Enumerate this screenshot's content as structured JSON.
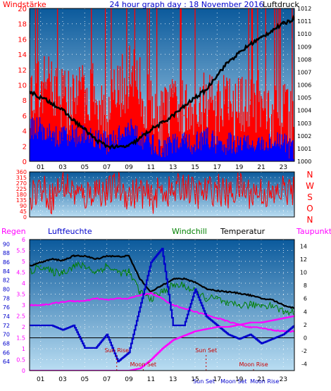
{
  "title": "24 hour graph day : 18 November 2016",
  "colors": {
    "wind": "#ff0000",
    "gust": "#0000ff",
    "pressure": "#000000",
    "rain": "#0000ff",
    "humidity": "#0000cc",
    "windchill": "#008000",
    "temperature": "#000000",
    "dewpoint": "#ff00ff"
  },
  "chart_data": [
    {
      "type": "line",
      "title": "24 hour graph day : 18 November 2016",
      "left_label": "Windstärke",
      "right_label": "Luftdruck",
      "x_ticks": [
        "01",
        "03",
        "05",
        "07",
        "09",
        "11",
        "13",
        "15",
        "17",
        "19",
        "21",
        "23"
      ],
      "y_left": {
        "range": [
          0,
          20
        ],
        "ticks": [
          "0",
          "2",
          "4",
          "6",
          "8",
          "10",
          "12",
          "14",
          "16",
          "18",
          "20"
        ]
      },
      "y_right": {
        "range": [
          1000,
          1012
        ],
        "ticks": [
          "1000",
          "1001",
          "1002",
          "1003",
          "1004",
          "1005",
          "1006",
          "1007",
          "1008",
          "1009",
          "1010",
          "1011",
          "1012"
        ]
      },
      "series": [
        {
          "name": "",
          "x": [
            0,
            1,
            2,
            3,
            4,
            5,
            6,
            7,
            8,
            9,
            10,
            11,
            12,
            13,
            14,
            15,
            16,
            17,
            18,
            19,
            20,
            21,
            22,
            23,
            24
          ],
          "values": [
            8,
            9,
            10,
            8,
            7,
            9,
            8,
            6,
            8,
            11,
            9,
            6,
            5,
            6,
            6,
            7,
            8,
            6,
            7,
            6,
            8,
            7,
            6,
            6,
            4
          ]
        },
        {
          "name": "",
          "x": [
            0,
            1,
            2,
            3,
            4,
            5,
            6,
            7,
            8,
            9,
            10,
            11,
            12,
            13,
            14,
            15,
            16,
            17,
            18,
            19,
            20,
            21,
            22,
            23,
            24
          ],
          "values": [
            4,
            4,
            3,
            3,
            3,
            3,
            3,
            2,
            3,
            4,
            3,
            2,
            1,
            2,
            2,
            2,
            3,
            2,
            2,
            2,
            2,
            2,
            2,
            2,
            1
          ]
        },
        {
          "name": "",
          "x": [
            0,
            1,
            2,
            3,
            4,
            5,
            6,
            7,
            8,
            9,
            10,
            11,
            12,
            13,
            14,
            15,
            16,
            17,
            18,
            19,
            20,
            21,
            22,
            23,
            24
          ],
          "values": [
            1005.5,
            1005.0,
            1004.6,
            1004.0,
            1003.2,
            1002.5,
            1001.7,
            1001.2,
            1001.1,
            1001.2,
            1001.8,
            1002.5,
            1003.0,
            1003.6,
            1004.3,
            1005.0,
            1005.6,
            1006.8,
            1007.8,
            1008.5,
            1009.2,
            1009.7,
            1010.3,
            1010.8,
            1011.2
          ]
        }
      ]
    },
    {
      "type": "scatter",
      "x_ticks": [
        "01",
        "03",
        "05",
        "07",
        "09",
        "11",
        "13",
        "15",
        "17",
        "19",
        "21",
        "23"
      ],
      "y_left": {
        "range": [
          0,
          360
        ],
        "ticks": [
          "0",
          "45",
          "90",
          "135",
          "180",
          "225",
          "270",
          "315",
          "360"
        ]
      },
      "compass_labels": [
        "N",
        "W",
        "S",
        "O",
        "N"
      ],
      "series": [
        {
          "name": "",
          "x": [
            0,
            1,
            2,
            3,
            4,
            5,
            6,
            7,
            8,
            9,
            10,
            11,
            12,
            13,
            14,
            15,
            16,
            17,
            18,
            19,
            20,
            21,
            22,
            23,
            24
          ],
          "values": [
            180,
            240,
            150,
            270,
            200,
            160,
            230,
            190,
            250,
            170,
            210,
            140,
            220,
            190,
            260,
            180,
            200,
            230,
            170,
            240,
            190,
            210,
            160,
            220,
            200
          ]
        }
      ]
    },
    {
      "type": "line",
      "labels": [
        "Regen",
        "Luftfeuchte",
        "Windchill",
        "Temperatur",
        "Taupunkt"
      ],
      "x_ticks": [
        "01",
        "03",
        "05",
        "07",
        "09",
        "11",
        "13",
        "15",
        "17",
        "19",
        "21",
        "23"
      ],
      "rain_axis": {
        "range": [
          0,
          6
        ],
        "ticks": [
          "0",
          "0.5",
          "1",
          "1.5",
          "2",
          "2.5",
          "3",
          "3.5",
          "4",
          "4.5",
          "5",
          "5.5",
          "6"
        ]
      },
      "humidity_axis": {
        "range": [
          62,
          91
        ],
        "ticks": [
          "64",
          "66",
          "68",
          "70",
          "72",
          "74",
          "76",
          "78",
          "80",
          "82",
          "84",
          "86",
          "88",
          "90"
        ]
      },
      "temp_axis": {
        "range": [
          -5,
          15
        ],
        "ticks": [
          "-4",
          "-2",
          "0",
          "2",
          "4",
          "6",
          "8",
          "10",
          "12",
          "14"
        ]
      },
      "annotations": [
        "Sun Rise",
        "Moon Set",
        "Sun Set",
        "Moon Rise",
        "Sun Set",
        "Moon Set",
        "Moon Rise"
      ],
      "series": [
        {
          "name": "",
          "axis": "humidity",
          "x": [
            0,
            1,
            2,
            3,
            4,
            5,
            6,
            7,
            8,
            9,
            10,
            11,
            12,
            13,
            14,
            15,
            16,
            17,
            18,
            19,
            20,
            21,
            22,
            23,
            24
          ],
          "values": [
            72,
            72,
            72,
            71,
            72,
            67,
            67,
            70,
            64,
            66,
            76,
            86,
            89,
            72,
            72,
            80,
            74,
            72,
            70,
            69,
            70,
            68,
            69,
            70,
            72
          ]
        },
        {
          "name": "",
          "axis": "rain",
          "x": [
            0,
            1,
            2,
            3,
            4,
            5,
            6,
            7,
            8,
            9,
            10,
            11,
            12,
            13,
            14,
            15,
            16,
            17,
            18,
            19,
            20,
            21,
            22,
            23,
            24
          ],
          "values": [
            0,
            0,
            0,
            0,
            0,
            0,
            0,
            0,
            0,
            0,
            0.1,
            0.5,
            1,
            1.4,
            1.6,
            1.8,
            1.9,
            2,
            2,
            2.1,
            2.2,
            2.2,
            2.3,
            2.4,
            2.5
          ]
        },
        {
          "name": "Windchill",
          "axis": "temp",
          "x": [
            0,
            1,
            2,
            3,
            4,
            5,
            6,
            7,
            8,
            9,
            10,
            11,
            12,
            13,
            14,
            15,
            16,
            17,
            18,
            19,
            20,
            21,
            22,
            23,
            24
          ],
          "values": [
            10,
            11,
            10,
            10,
            11,
            11,
            10,
            11,
            10,
            10,
            7,
            6,
            7,
            8,
            8,
            7,
            6,
            6,
            5,
            5,
            5,
            5,
            5,
            4,
            4
          ]
        },
        {
          "name": "Temperatur",
          "axis": "temp",
          "x": [
            0,
            1,
            2,
            3,
            4,
            5,
            6,
            7,
            8,
            9,
            10,
            11,
            12,
            13,
            14,
            15,
            16,
            17,
            18,
            19,
            20,
            21,
            22,
            23,
            24
          ],
          "values": [
            11,
            11.5,
            12,
            11.8,
            12.5,
            12.5,
            12,
            12.5,
            12.4,
            12.5,
            9,
            7,
            8,
            9,
            9,
            8.5,
            7.5,
            7.2,
            7,
            6.8,
            6.5,
            6,
            5.8,
            5,
            4.5
          ]
        },
        {
          "name": "Taupunkt",
          "axis": "temp",
          "x": [
            0,
            1,
            2,
            3,
            4,
            5,
            6,
            7,
            8,
            9,
            10,
            11,
            12,
            13,
            14,
            15,
            16,
            17,
            18,
            19,
            20,
            21,
            22,
            23,
            24
          ],
          "values": [
            5,
            5,
            5.2,
            5.5,
            5.6,
            5.6,
            6,
            5.8,
            6,
            6,
            6.5,
            6.8,
            6,
            5,
            4.5,
            4,
            3.5,
            3,
            2.5,
            2,
            1.6,
            1.5,
            1.2,
            1,
            1
          ]
        }
      ]
    }
  ]
}
